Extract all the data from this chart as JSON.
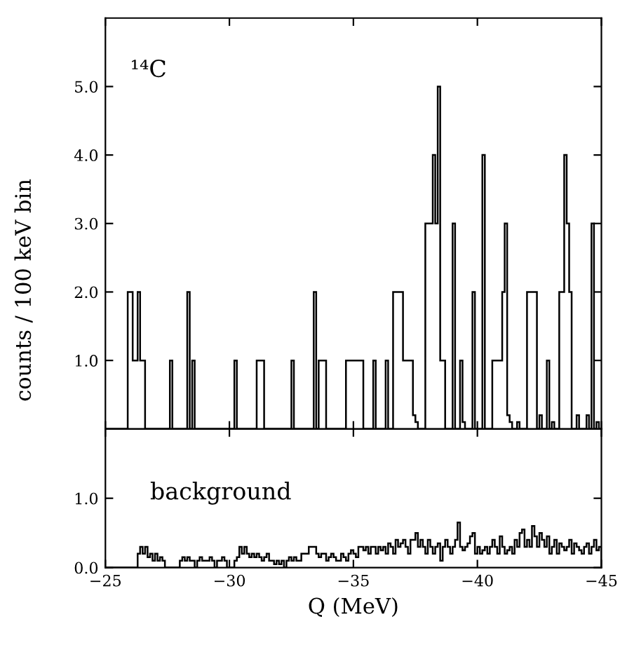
{
  "chart_data": [
    {
      "type": "histogram",
      "ylabel": "counts / 100 keV bin",
      "annotations": [
        "¹⁴C"
      ],
      "color": "#000000",
      "xlim": [
        -25,
        -45
      ],
      "xticks": [
        -25,
        -30,
        -35,
        -40,
        -45
      ],
      "ylim": [
        0,
        6
      ],
      "yticks": [
        {
          "value": 1,
          "label": "1.0"
        },
        {
          "value": 2,
          "label": "2.0"
        },
        {
          "value": 3,
          "label": "3.0"
        },
        {
          "value": 4,
          "label": "4.0"
        },
        {
          "value": 5,
          "label": "5.0"
        }
      ],
      "tick_labels": "y",
      "grid": false,
      "legend": false,
      "bins": [
        -25,
        -25.1,
        -25.2,
        -25.3,
        -25.4,
        -25.5,
        -25.6,
        -25.7,
        -25.8,
        -25.9,
        -26,
        -26.1,
        -26.2,
        -26.3,
        -26.4,
        -26.5,
        -26.6,
        -26.7,
        -26.8,
        -26.9,
        -27,
        -27.1,
        -27.2,
        -27.3,
        -27.4,
        -27.5,
        -27.6,
        -27.7,
        -27.8,
        -27.9,
        -28,
        -28.1,
        -28.2,
        -28.3,
        -28.4,
        -28.5,
        -28.6,
        -28.7,
        -28.8,
        -28.9,
        -29,
        -29.1,
        -29.2,
        -29.3,
        -29.4,
        -29.5,
        -29.6,
        -29.7,
        -29.8,
        -29.9,
        -30,
        -30.1,
        -30.2,
        -30.3,
        -30.4,
        -30.5,
        -30.6,
        -30.7,
        -30.8,
        -30.9,
        -31,
        -31.1,
        -31.2,
        -31.3,
        -31.4,
        -31.5,
        -31.6,
        -31.7,
        -31.8,
        -31.9,
        -32,
        -32.1,
        -32.2,
        -32.3,
        -32.4,
        -32.5,
        -32.6,
        -32.7,
        -32.8,
        -32.9,
        -33,
        -33.1,
        -33.2,
        -33.3,
        -33.4,
        -33.5,
        -33.6,
        -33.7,
        -33.8,
        -33.9,
        -34,
        -34.1,
        -34.2,
        -34.3,
        -34.4,
        -34.5,
        -34.6,
        -34.7,
        -34.8,
        -34.9,
        -35,
        -35.1,
        -35.2,
        -35.3,
        -35.4,
        -35.5,
        -35.6,
        -35.7,
        -35.8,
        -35.9,
        -36,
        -36.1,
        -36.2,
        -36.3,
        -36.4,
        -36.5,
        -36.6,
        -36.7,
        -36.8,
        -36.9,
        -37,
        -37.1,
        -37.2,
        -37.3,
        -37.4,
        -37.5,
        -37.6,
        -37.7,
        -37.8,
        -37.9,
        -38,
        -38.1,
        -38.2,
        -38.3,
        -38.4,
        -38.5,
        -38.6,
        -38.7,
        -38.8,
        -38.9,
        -39,
        -39.1,
        -39.2,
        -39.3,
        -39.4,
        -39.5,
        -39.6,
        -39.7,
        -39.8,
        -39.9,
        -40,
        -40.1,
        -40.2,
        -40.3,
        -40.4,
        -40.5,
        -40.6,
        -40.7,
        -40.8,
        -40.9,
        -41,
        -41.1,
        -41.2,
        -41.3,
        -41.4,
        -41.5,
        -41.6,
        -41.7,
        -41.8,
        -41.9,
        -42,
        -42.1,
        -42.2,
        -42.3,
        -42.4,
        -42.5,
        -42.6,
        -42.7,
        -42.8,
        -42.9,
        -43,
        -43.1,
        -43.2,
        -43.3,
        -43.4,
        -43.5,
        -43.6,
        -43.7,
        -43.8,
        -43.9,
        -44,
        -44.1,
        -44.2,
        -44.3,
        -44.4,
        -44.5,
        -44.6,
        -44.7,
        -44.8,
        -44.9,
        -45
      ],
      "values": [
        0,
        0,
        0,
        0,
        0,
        0,
        0,
        0,
        0,
        2,
        2,
        1,
        1,
        2,
        1,
        1,
        0,
        0,
        0,
        0,
        0,
        0,
        0,
        0,
        0,
        0,
        1,
        0,
        0,
        0,
        0,
        0,
        0,
        2,
        0,
        1,
        0,
        0,
        0,
        0,
        0,
        0,
        0,
        0,
        0,
        0,
        0,
        0,
        0,
        0,
        0,
        0,
        1,
        0,
        0,
        0,
        0,
        0,
        0,
        0,
        0,
        1,
        1,
        1,
        0,
        0,
        0,
        0,
        0,
        0,
        0,
        0,
        0,
        0,
        0,
        1,
        0,
        0,
        0,
        0,
        0,
        0,
        0,
        0,
        2,
        0,
        1,
        1,
        1,
        0,
        0,
        0,
        0,
        0,
        0,
        0,
        0,
        1,
        1,
        1,
        1,
        1,
        1,
        1,
        0,
        0,
        0,
        0,
        1,
        0,
        0,
        0,
        0,
        1,
        0,
        0,
        2,
        2,
        2,
        2,
        1,
        1,
        1,
        1,
        0.2,
        0.1,
        0,
        0,
        0,
        3,
        3,
        3,
        4,
        3,
        5,
        1,
        1,
        0,
        0,
        0,
        3,
        0,
        0,
        1,
        0.1,
        0,
        0,
        0,
        2,
        0,
        0,
        0,
        4,
        0,
        0,
        0,
        1,
        1,
        1,
        1,
        2,
        3,
        0.2,
        0.1,
        0,
        0,
        0.1,
        0,
        0,
        0,
        2,
        2,
        2,
        2,
        0,
        0.2,
        0,
        0,
        1,
        0,
        0.1,
        0,
        0,
        2,
        2,
        4,
        3,
        2,
        0,
        0,
        0.2,
        0,
        0,
        0,
        0.2,
        0,
        3,
        0,
        0.1,
        0
      ]
    },
    {
      "type": "histogram",
      "xlabel": "Q (MeV)",
      "annotations": [
        "background"
      ],
      "color": "#000000",
      "xlim": [
        -25,
        -45
      ],
      "xticks": [
        {
          "value": -25,
          "label": "−25"
        },
        {
          "value": -30,
          "label": "−30"
        },
        {
          "value": -35,
          "label": "−35"
        },
        {
          "value": -40,
          "label": "−40"
        },
        {
          "value": -45,
          "label": "−45"
        }
      ],
      "ylim": [
        0,
        2
      ],
      "yticks": [
        {
          "value": 0,
          "label": "0.0"
        },
        {
          "value": 1,
          "label": "1.0"
        }
      ],
      "grid": false,
      "legend": false,
      "bins": [
        -25,
        -25.1,
        -25.2,
        -25.3,
        -25.4,
        -25.5,
        -25.6,
        -25.7,
        -25.8,
        -25.9,
        -26,
        -26.1,
        -26.2,
        -26.3,
        -26.4,
        -26.5,
        -26.6,
        -26.7,
        -26.8,
        -26.9,
        -27,
        -27.1,
        -27.2,
        -27.3,
        -27.4,
        -27.5,
        -27.6,
        -27.7,
        -27.8,
        -27.9,
        -28,
        -28.1,
        -28.2,
        -28.3,
        -28.4,
        -28.5,
        -28.6,
        -28.7,
        -28.8,
        -28.9,
        -29,
        -29.1,
        -29.2,
        -29.3,
        -29.4,
        -29.5,
        -29.6,
        -29.7,
        -29.8,
        -29.9,
        -30,
        -30.1,
        -30.2,
        -30.3,
        -30.4,
        -30.5,
        -30.6,
        -30.7,
        -30.8,
        -30.9,
        -31,
        -31.1,
        -31.2,
        -31.3,
        -31.4,
        -31.5,
        -31.6,
        -31.7,
        -31.8,
        -31.9,
        -32,
        -32.1,
        -32.2,
        -32.3,
        -32.4,
        -32.5,
        -32.6,
        -32.7,
        -32.8,
        -32.9,
        -33,
        -33.1,
        -33.2,
        -33.3,
        -33.4,
        -33.5,
        -33.6,
        -33.7,
        -33.8,
        -33.9,
        -34,
        -34.1,
        -34.2,
        -34.3,
        -34.4,
        -34.5,
        -34.6,
        -34.7,
        -34.8,
        -34.9,
        -35,
        -35.1,
        -35.2,
        -35.3,
        -35.4,
        -35.5,
        -35.6,
        -35.7,
        -35.8,
        -35.9,
        -36,
        -36.1,
        -36.2,
        -36.3,
        -36.4,
        -36.5,
        -36.6,
        -36.7,
        -36.8,
        -36.9,
        -37,
        -37.1,
        -37.2,
        -37.3,
        -37.4,
        -37.5,
        -37.6,
        -37.7,
        -37.8,
        -37.9,
        -38,
        -38.1,
        -38.2,
        -38.3,
        -38.4,
        -38.5,
        -38.6,
        -38.7,
        -38.8,
        -38.9,
        -39,
        -39.1,
        -39.2,
        -39.3,
        -39.4,
        -39.5,
        -39.6,
        -39.7,
        -39.8,
        -39.9,
        -40,
        -40.1,
        -40.2,
        -40.3,
        -40.4,
        -40.5,
        -40.6,
        -40.7,
        -40.8,
        -40.9,
        -41,
        -41.1,
        -41.2,
        -41.3,
        -41.4,
        -41.5,
        -41.6,
        -41.7,
        -41.8,
        -41.9,
        -42,
        -42.1,
        -42.2,
        -42.3,
        -42.4,
        -42.5,
        -42.6,
        -42.7,
        -42.8,
        -42.9,
        -43,
        -43.1,
        -43.2,
        -43.3,
        -43.4,
        -43.5,
        -43.6,
        -43.7,
        -43.8,
        -43.9,
        -44,
        -44.1,
        -44.2,
        -44.3,
        -44.4,
        -44.5,
        -44.6,
        -44.7,
        -44.8,
        -44.9,
        -45
      ],
      "values": [
        0,
        0,
        0,
        0,
        0,
        0,
        0,
        0,
        0,
        0,
        0,
        0,
        0,
        0.2,
        0.3,
        0.2,
        0.3,
        0.15,
        0.2,
        0.1,
        0.2,
        0.1,
        0.15,
        0.1,
        0,
        0,
        0,
        0,
        0,
        0,
        0.1,
        0.15,
        0.1,
        0.15,
        0.1,
        0.1,
        0,
        0.1,
        0.15,
        0.1,
        0.1,
        0.1,
        0.15,
        0.1,
        0,
        0.1,
        0.1,
        0.15,
        0.1,
        0,
        0,
        0,
        0.1,
        0.15,
        0.3,
        0.2,
        0.3,
        0.2,
        0.15,
        0.2,
        0.15,
        0.2,
        0.15,
        0.1,
        0.15,
        0.2,
        0.1,
        0.1,
        0.05,
        0.1,
        0.05,
        0.1,
        0,
        0.1,
        0.15,
        0.1,
        0.15,
        0.1,
        0.1,
        0.2,
        0.2,
        0.2,
        0.3,
        0.3,
        0.3,
        0.2,
        0.15,
        0.2,
        0.2,
        0.1,
        0.15,
        0.2,
        0.15,
        0.1,
        0.1,
        0.2,
        0.15,
        0.1,
        0.2,
        0.25,
        0.2,
        0.15,
        0.3,
        0.3,
        0.25,
        0.3,
        0.2,
        0.3,
        0.3,
        0.2,
        0.3,
        0.25,
        0.3,
        0.2,
        0.35,
        0.3,
        0.2,
        0.4,
        0.3,
        0.35,
        0.4,
        0.3,
        0.2,
        0.4,
        0.4,
        0.5,
        0.3,
        0.4,
        0.3,
        0.2,
        0.4,
        0.3,
        0.2,
        0.3,
        0.35,
        0.1,
        0.3,
        0.4,
        0.3,
        0.2,
        0.3,
        0.4,
        0.65,
        0.3,
        0.25,
        0.3,
        0.35,
        0.45,
        0.5,
        0.2,
        0.3,
        0.2,
        0.25,
        0.3,
        0.2,
        0.3,
        0.4,
        0.3,
        0.2,
        0.45,
        0.3,
        0.2,
        0.25,
        0.3,
        0.2,
        0.4,
        0.3,
        0.5,
        0.55,
        0.3,
        0.4,
        0.3,
        0.6,
        0.45,
        0.3,
        0.5,
        0.4,
        0.3,
        0.45,
        0.2,
        0.3,
        0.4,
        0.2,
        0.35,
        0.3,
        0.25,
        0.3,
        0.4,
        0.2,
        0.35,
        0.3,
        0.25,
        0.2,
        0.3,
        0.35,
        0.2,
        0.3,
        0.4,
        0.25,
        0.3
      ]
    }
  ]
}
